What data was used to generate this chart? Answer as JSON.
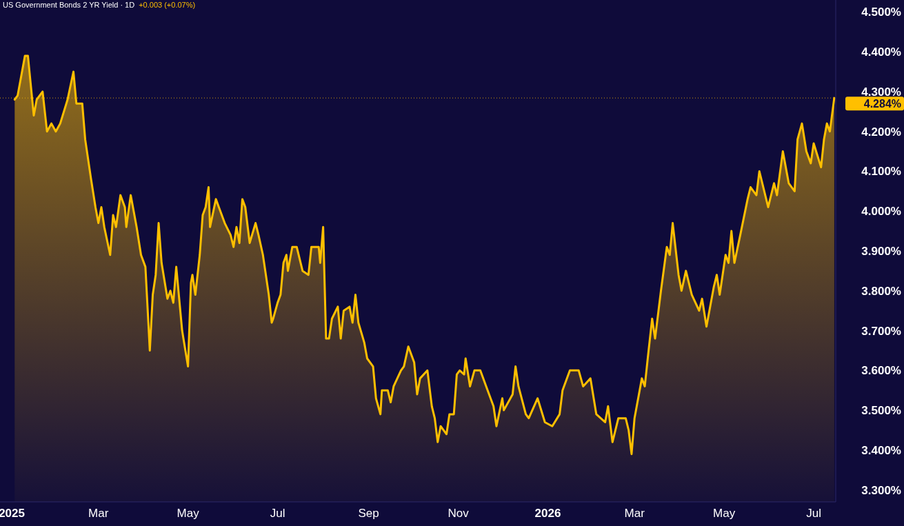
{
  "chart_data": {
    "type": "area",
    "title": "US Government Bonds 2 YR Yield · 1D",
    "subtitle": "+0.003 (+0.07%)",
    "x": [
      "2025-01-03",
      "2025-01-05",
      "2025-01-10",
      "2025-01-12",
      "2025-01-16",
      "2025-01-18",
      "2025-01-22",
      "2025-01-25",
      "2025-01-28",
      "2025-01-31",
      "2025-02-03",
      "2025-02-08",
      "2025-02-12",
      "2025-02-14",
      "2025-02-18",
      "2025-02-20",
      "2025-02-24",
      "2025-02-27",
      "2025-03-01",
      "2025-03-03",
      "2025-03-05",
      "2025-03-09",
      "2025-03-11",
      "2025-03-13",
      "2025-03-16",
      "2025-03-19",
      "2025-03-20",
      "2025-03-23",
      "2025-03-27",
      "2025-03-30",
      "2025-04-02",
      "2025-04-05",
      "2025-04-07",
      "2025-04-09",
      "2025-04-11",
      "2025-04-13",
      "2025-04-17",
      "2025-04-19",
      "2025-04-21",
      "2025-04-23",
      "2025-04-27",
      "2025-05-01",
      "2025-05-03",
      "2025-05-04",
      "2025-05-06",
      "2025-05-09",
      "2025-05-11",
      "2025-05-13",
      "2025-05-15",
      "2025-05-16",
      "2025-05-20",
      "2025-05-22",
      "2025-05-26",
      "2025-05-30",
      "2025-06-01",
      "2025-06-03",
      "2025-06-05",
      "2025-06-07",
      "2025-06-09",
      "2025-06-12",
      "2025-06-16",
      "2025-06-18",
      "2025-06-21",
      "2025-06-25",
      "2025-06-27",
      "2025-06-28",
      "2025-07-01",
      "2025-07-03",
      "2025-07-05",
      "2025-07-07",
      "2025-07-08",
      "2025-07-11",
      "2025-07-14",
      "2025-07-18",
      "2025-07-22",
      "2025-07-24",
      "2025-07-29",
      "2025-07-30",
      "2025-08-01",
      "2025-08-03",
      "2025-08-05",
      "2025-08-07",
      "2025-08-11",
      "2025-08-13",
      "2025-08-15",
      "2025-08-19",
      "2025-08-21",
      "2025-08-23",
      "2025-08-25",
      "2025-08-29",
      "2025-08-31",
      "2025-09-04",
      "2025-09-06",
      "2025-09-09",
      "2025-09-10",
      "2025-09-14",
      "2025-09-16",
      "2025-09-18",
      "2025-09-23",
      "2025-09-25",
      "2025-09-28",
      "2025-10-02",
      "2025-10-04",
      "2025-10-06",
      "2025-10-11",
      "2025-10-14",
      "2025-10-16",
      "2025-10-18",
      "2025-10-20",
      "2025-10-24",
      "2025-10-26",
      "2025-10-29",
      "2025-10-31",
      "2025-11-02",
      "2025-11-05",
      "2025-11-06",
      "2025-11-09",
      "2025-11-12",
      "2025-11-16",
      "2025-11-20",
      "2025-11-25",
      "2025-11-27",
      "2025-12-01",
      "2025-12-02",
      "2025-12-08",
      "2025-12-10",
      "2025-12-12",
      "2025-12-17",
      "2025-12-19",
      "2025-12-25",
      "2025-12-30",
      "2026-01-04",
      "2026-01-09",
      "2026-01-11",
      "2026-01-16",
      "2026-01-22",
      "2026-01-25",
      "2026-01-30",
      "2026-02-03",
      "2026-02-09",
      "2026-02-11",
      "2026-02-14",
      "2026-02-18",
      "2026-02-23",
      "2026-02-25",
      "2026-02-27",
      "2026-03-01",
      "2026-03-06",
      "2026-03-08",
      "2026-03-10",
      "2026-03-13",
      "2026-03-15",
      "2026-03-19",
      "2026-03-23",
      "2026-03-25",
      "2026-03-27",
      "2026-03-31",
      "2026-04-02",
      "2026-04-05",
      "2026-04-09",
      "2026-04-14",
      "2026-04-16",
      "2026-04-19",
      "2026-04-24",
      "2026-04-26",
      "2026-04-28",
      "2026-05-02",
      "2026-05-04",
      "2026-05-06",
      "2026-05-08",
      "2026-05-12",
      "2026-05-17",
      "2026-05-19",
      "2026-05-23",
      "2026-05-25",
      "2026-05-29",
      "2026-05-31",
      "2026-06-04",
      "2026-06-06",
      "2026-06-10",
      "2026-06-14",
      "2026-06-18",
      "2026-06-20",
      "2026-06-23",
      "2026-06-26",
      "2026-06-29",
      "2026-07-01",
      "2026-07-06",
      "2026-07-08",
      "2026-07-10",
      "2026-07-12",
      "2026-07-15"
    ],
    "series": [
      {
        "color": "#ffbf00",
        "values": [
          4.28,
          4.29,
          4.39,
          4.39,
          4.24,
          4.28,
          4.3,
          4.2,
          4.22,
          4.2,
          4.22,
          4.28,
          4.35,
          4.27,
          4.27,
          4.18,
          4.08,
          4.01,
          3.97,
          4.01,
          3.96,
          3.89,
          3.99,
          3.96,
          4.04,
          4.01,
          3.96,
          4.04,
          3.96,
          3.89,
          3.86,
          3.65,
          3.79,
          3.84,
          3.97,
          3.87,
          3.78,
          3.8,
          3.77,
          3.86,
          3.7,
          3.61,
          3.82,
          3.84,
          3.79,
          3.89,
          3.99,
          4.01,
          4.06,
          3.96,
          4.03,
          4.01,
          3.97,
          3.94,
          3.91,
          3.96,
          3.92,
          4.03,
          4.01,
          3.92,
          3.97,
          3.94,
          3.89,
          3.79,
          3.72,
          3.73,
          3.77,
          3.79,
          3.87,
          3.89,
          3.85,
          3.91,
          3.91,
          3.85,
          3.84,
          3.91,
          3.91,
          3.87,
          3.96,
          3.68,
          3.68,
          3.73,
          3.76,
          3.68,
          3.75,
          3.76,
          3.72,
          3.79,
          3.72,
          3.67,
          3.63,
          3.61,
          3.53,
          3.49,
          3.55,
          3.55,
          3.52,
          3.56,
          3.6,
          3.61,
          3.66,
          3.62,
          3.54,
          3.58,
          3.6,
          3.51,
          3.48,
          3.42,
          3.46,
          3.44,
          3.49,
          3.49,
          3.59,
          3.6,
          3.59,
          3.63,
          3.56,
          3.6,
          3.6,
          3.56,
          3.51,
          3.46,
          3.53,
          3.5,
          3.54,
          3.61,
          3.56,
          3.49,
          3.48,
          3.53,
          3.47,
          3.46,
          3.49,
          3.55,
          3.6,
          3.6,
          3.56,
          3.58,
          3.49,
          3.47,
          3.51,
          3.42,
          3.48,
          3.48,
          3.45,
          3.39,
          3.48,
          3.58,
          3.56,
          3.63,
          3.73,
          3.68,
          3.8,
          3.91,
          3.89,
          3.97,
          3.84,
          3.8,
          3.85,
          3.79,
          3.75,
          3.78,
          3.71,
          3.81,
          3.84,
          3.79,
          3.89,
          3.87,
          3.95,
          3.87,
          3.94,
          4.03,
          4.06,
          4.04,
          4.1,
          4.04,
          4.01,
          4.07,
          4.04,
          4.15,
          4.07,
          4.05,
          4.18,
          4.22,
          4.15,
          4.12,
          4.17,
          4.11,
          4.18,
          4.22,
          4.2,
          4.284
        ]
      }
    ],
    "xlim": [
      "2024-12-24",
      "2026-07-16"
    ],
    "xticks": [
      {
        "value": "2025-01-01",
        "label": "2025"
      },
      {
        "value": "2025-03-01",
        "label": "Mar"
      },
      {
        "value": "2025-05-01",
        "label": "May"
      },
      {
        "value": "2025-07-01",
        "label": "Jul"
      },
      {
        "value": "2025-09-01",
        "label": "Sep"
      },
      {
        "value": "2025-11-01",
        "label": "Nov"
      },
      {
        "value": "2026-01-01",
        "label": "2026"
      },
      {
        "value": "2026-03-01",
        "label": "Mar"
      },
      {
        "value": "2026-05-01",
        "label": "May"
      },
      {
        "value": "2026-07-01",
        "label": "Jul"
      }
    ],
    "ylim": [
      3.27,
      4.53
    ],
    "yticks": [
      {
        "value": 3.3,
        "label": "3.300%"
      },
      {
        "value": 3.4,
        "label": "3.400%"
      },
      {
        "value": 3.5,
        "label": "3.500%"
      },
      {
        "value": 3.6,
        "label": "3.600%"
      },
      {
        "value": 3.7,
        "label": "3.700%"
      },
      {
        "value": 3.8,
        "label": "3.800%"
      },
      {
        "value": 3.9,
        "label": "3.900%"
      },
      {
        "value": 4.0,
        "label": "4.000%"
      },
      {
        "value": 4.1,
        "label": "4.100%"
      },
      {
        "value": 4.2,
        "label": "4.200%"
      },
      {
        "value": 4.3,
        "label": "4.300%"
      },
      {
        "value": 4.4,
        "label": "4.400%"
      },
      {
        "value": 4.5,
        "label": "4.500%"
      }
    ],
    "ref_lines": [
      {
        "axis": "y",
        "value": 4.284,
        "label": "4.284%",
        "color": "#ffbf00",
        "line_style": "dotted"
      }
    ]
  }
}
